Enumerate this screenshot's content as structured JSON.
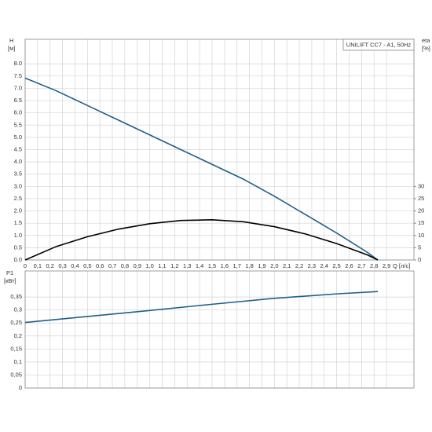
{
  "chart_data": [
    {
      "type": "line",
      "title": "UNILIFT CC7 - A1, 50Hz",
      "y_label": "H",
      "y_unit": "[м]",
      "y2_label": "eta",
      "y2_unit": "[%]",
      "x_label": "Q [л/с]",
      "x": [
        0,
        0.25,
        0.5,
        0.75,
        1.0,
        1.25,
        1.5,
        1.75,
        2.0,
        2.25,
        2.5,
        2.75,
        2.83
      ],
      "series": [
        {
          "color": "#1f5f8b",
          "values": [
            7.42,
            6.9,
            6.3,
            5.7,
            5.1,
            4.5,
            3.9,
            3.3,
            2.6,
            1.85,
            1.1,
            0.3,
            0
          ]
        },
        {
          "color": "#000000",
          "axis": "y2",
          "values": [
            0,
            5.5,
            9.5,
            12.6,
            14.8,
            16.1,
            16.4,
            15.6,
            13.6,
            10.6,
            6.7,
            2.0,
            0
          ]
        }
      ],
      "xlim": [
        0,
        3.12
      ],
      "xticks": [
        0,
        {
          "value": 0.1,
          "label": "0,1"
        },
        {
          "value": 0.2,
          "label": "0,2"
        },
        {
          "value": 0.3,
          "label": "0,3"
        },
        {
          "value": 0.4,
          "label": "0,4"
        },
        {
          "value": 0.5,
          "label": "0,5"
        },
        {
          "value": 0.6,
          "label": "0,6"
        },
        {
          "value": 0.7,
          "label": "0,7"
        },
        {
          "value": 0.8,
          "label": "0,8"
        },
        {
          "value": 0.9,
          "label": "0,9"
        },
        {
          "value": 1.0,
          "label": "1,0"
        },
        {
          "value": 1.1,
          "label": "1,1"
        },
        {
          "value": 1.2,
          "label": "1,2"
        },
        {
          "value": 1.3,
          "label": "1,3"
        },
        {
          "value": 1.4,
          "label": "1,4"
        },
        {
          "value": 1.5,
          "label": "1,5"
        },
        {
          "value": 1.6,
          "label": "1,6"
        },
        {
          "value": 1.7,
          "label": "1,7"
        },
        {
          "value": 1.8,
          "label": "1,8"
        },
        {
          "value": 1.9,
          "label": "1,9"
        },
        {
          "value": 2.0,
          "label": "2,0"
        },
        {
          "value": 2.1,
          "label": "2,1"
        },
        {
          "value": 2.2,
          "label": "2,2"
        },
        {
          "value": 2.3,
          "label": "2,3"
        },
        {
          "value": 2.4,
          "label": "2,4"
        },
        {
          "value": 2.5,
          "label": "2,5"
        },
        {
          "value": 2.6,
          "label": "2,6"
        },
        {
          "value": 2.7,
          "label": "2,7"
        },
        {
          "value": 2.8,
          "label": "2,8"
        },
        {
          "value": 2.9,
          "label": "2,9"
        }
      ],
      "ylim": [
        0,
        9
      ],
      "yticks": [
        {
          "value": 0,
          "label": "0.0"
        },
        {
          "value": 0.5,
          "label": "0.5"
        },
        {
          "value": 1,
          "label": "1.0"
        },
        {
          "value": 1.5,
          "label": "1.5"
        },
        {
          "value": 2,
          "label": "2.0"
        },
        {
          "value": 2.5,
          "label": "2.5"
        },
        {
          "value": 3,
          "label": "3.0"
        },
        {
          "value": 3.5,
          "label": "3.5"
        },
        {
          "value": 4,
          "label": "4.0"
        },
        {
          "value": 4.5,
          "label": "4.5"
        },
        {
          "value": 5,
          "label": "5.0"
        },
        {
          "value": 5.5,
          "label": "5.5"
        },
        {
          "value": 6,
          "label": "6.0"
        },
        {
          "value": 6.5,
          "label": "6.5"
        },
        {
          "value": 7,
          "label": "7.0"
        },
        {
          "value": 7.5,
          "label": "7.5"
        },
        {
          "value": 8,
          "label": "8.0"
        }
      ],
      "y2lim": [
        0,
        90
      ],
      "y2ticks": [
        0,
        5,
        10,
        15,
        20,
        25,
        30
      ],
      "grid": true
    },
    {
      "type": "line",
      "y_label": "P1",
      "y_unit": "[кВт]",
      "x": [
        0,
        0.5,
        1.0,
        1.5,
        2.0,
        2.5,
        2.83
      ],
      "series": [
        {
          "color": "#1f5f8b",
          "values": [
            0.252,
            0.275,
            0.298,
            0.322,
            0.345,
            0.362,
            0.371
          ]
        }
      ],
      "xlim": [
        0,
        3.12
      ],
      "ylim": [
        0,
        0.45
      ],
      "yticks": [
        0,
        {
          "value": 0.05,
          "label": "0,05"
        },
        {
          "value": 0.1,
          "label": "0,1"
        },
        {
          "value": 0.15,
          "label": "0,15"
        },
        {
          "value": 0.2,
          "label": "0,2"
        },
        {
          "value": 0.25,
          "label": "0,25"
        },
        {
          "value": 0.3,
          "label": "0,3"
        },
        {
          "value": 0.35,
          "label": "0,35"
        }
      ],
      "grid": true
    }
  ]
}
